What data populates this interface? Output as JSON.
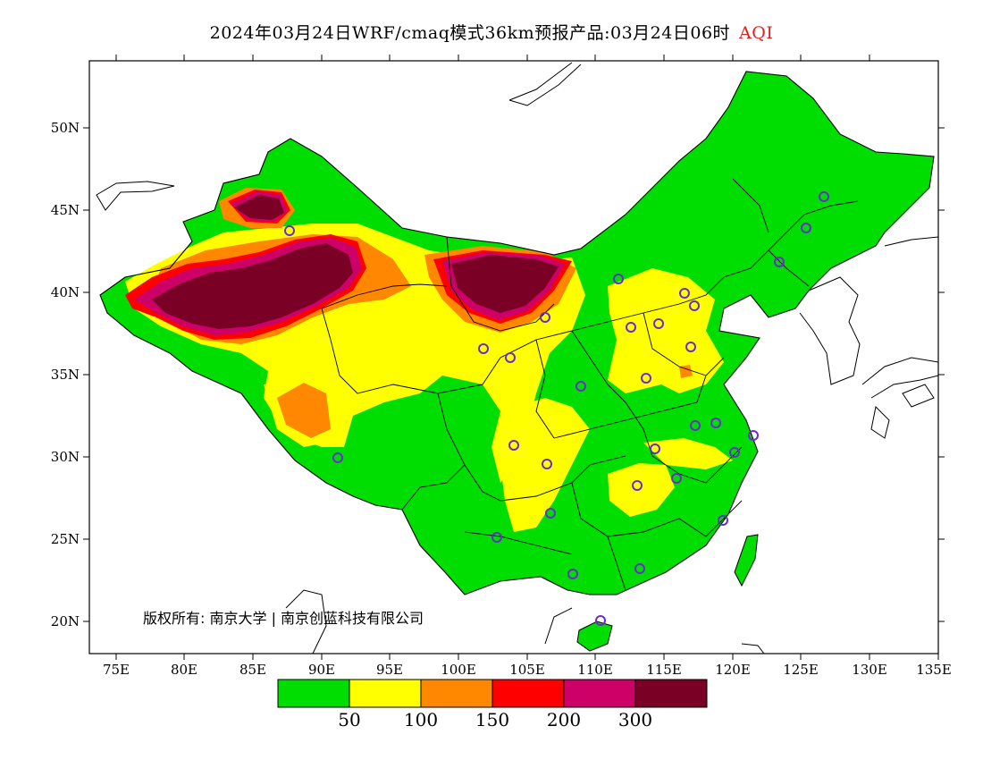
{
  "title": {
    "main": "2024年03月24日WRF/cmaq模式36km预报产品:03月24日06时",
    "variable": "AQI"
  },
  "axes": {
    "lat_ticks": [
      "50N",
      "45N",
      "40N",
      "35N",
      "30N",
      "25N",
      "20N"
    ],
    "lon_ticks": [
      "75E",
      "80E",
      "85E",
      "90E",
      "95E",
      "100E",
      "105E",
      "110E",
      "115E",
      "120E",
      "125E",
      "130E",
      "135E"
    ]
  },
  "copyright": "版权所有: 南京大学 | 南京创蓝科技有限公司",
  "legend": {
    "colors": [
      "#00dd00",
      "#ffff00",
      "#ff8800",
      "#ff0000",
      "#cc0066",
      "#7a0025"
    ],
    "labels": [
      "50",
      "100",
      "150",
      "200",
      "300"
    ]
  },
  "colors": {
    "good": "#00dd00",
    "moderate": "#ffff00",
    "sensitive": "#ff8800",
    "unhealthy": "#ff0000",
    "very_unhealthy": "#cc0066",
    "hazardous": "#7a0025",
    "station": "#6a2cd0"
  }
}
